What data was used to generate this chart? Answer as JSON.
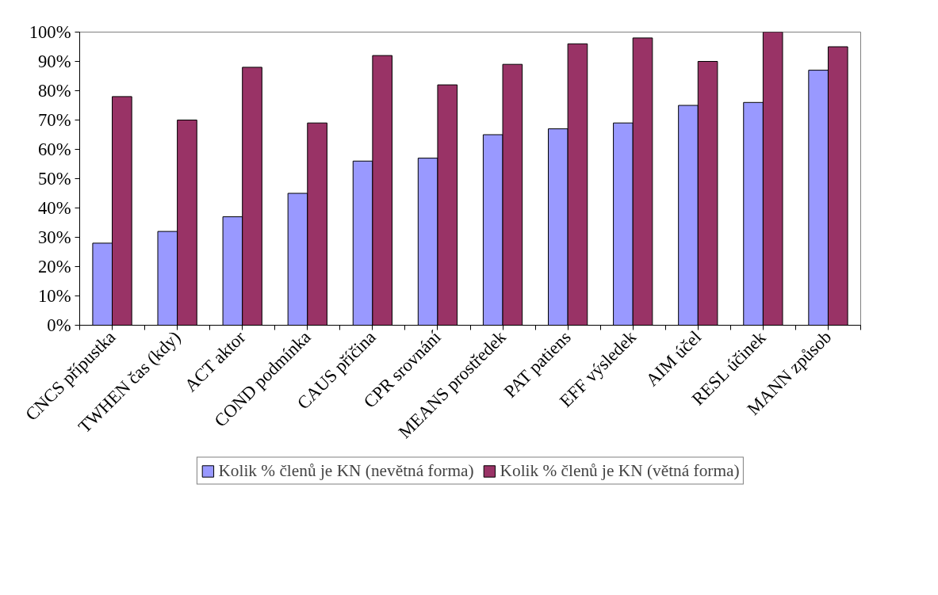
{
  "chart_data": {
    "type": "bar",
    "categories": [
      "CNCS přípustka",
      "TWHEN čas (kdy)",
      "ACT aktor",
      "COND podmínka",
      "CAUS příčina",
      "CPR srovnání",
      "MEANS prostředek",
      "PAT patiens",
      "EFF výsledek",
      "AIM účel",
      "RESL účinek",
      "MANN způsob"
    ],
    "series": [
      {
        "name": "Kolik % členů je KN (nevětná forma)",
        "color": "#9999ff",
        "values": [
          28,
          32,
          37,
          45,
          56,
          57,
          65,
          67,
          69,
          75,
          76,
          87
        ]
      },
      {
        "name": "Kolik % členů je KN (větná forma)",
        "color": "#993366",
        "values": [
          78,
          70,
          88,
          69,
          92,
          82,
          89,
          96,
          98,
          90,
          100,
          95
        ]
      }
    ],
    "ylim": [
      0,
      100
    ],
    "yticks": [
      {
        "value": 0,
        "label": "0%"
      },
      {
        "value": 10,
        "label": "10%"
      },
      {
        "value": 20,
        "label": "20%"
      },
      {
        "value": 30,
        "label": "30%"
      },
      {
        "value": 40,
        "label": "40%"
      },
      {
        "value": 50,
        "label": "50%"
      },
      {
        "value": 60,
        "label": "60%"
      },
      {
        "value": 70,
        "label": "70%"
      },
      {
        "value": 80,
        "label": "80%"
      },
      {
        "value": 90,
        "label": "90%"
      },
      {
        "value": 100,
        "label": "100%"
      }
    ],
    "grid": false,
    "legend": "bottom"
  }
}
